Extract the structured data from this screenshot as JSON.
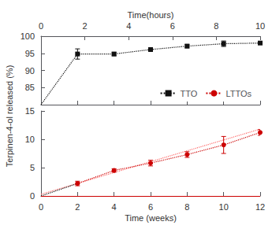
{
  "chart_data": {
    "type": "line",
    "ylabel": "Terpinen-4-ol released (%)",
    "xlabel": "Time (weeks)",
    "x2label": "Time(hours)",
    "xlim": [
      0,
      12
    ],
    "xticks": [
      0,
      2,
      4,
      6,
      8,
      10,
      12
    ],
    "x2lim": [
      0,
      10
    ],
    "x2ticks": [
      0,
      2,
      4,
      6,
      8,
      10
    ],
    "legend": "lower right",
    "grid": false,
    "panels": [
      {
        "ylim": [
          80,
          100
        ],
        "yticks": [
          85,
          90,
          95,
          100
        ],
        "tick_labels": "y",
        "series": [
          {
            "name": "TTO",
            "color": "#111111",
            "marker": "square",
            "line_style": "dotted",
            "x": [
              2,
              4,
              6,
              8,
              10,
              12
            ],
            "values": [
              94.8,
              94.8,
              96.1,
              97.1,
              97.8,
              98.0
            ],
            "errors": [
              1.5,
              0.5,
              0.4,
              0.5,
              0.8,
              0.4
            ]
          }
        ],
        "lines": [
          {
            "x": [
              0,
              2
            ],
            "values": [
              80,
              94.8
            ],
            "color": "#111111",
            "line_style": "dotted"
          }
        ]
      },
      {
        "ylim": [
          0,
          15
        ],
        "yticks": [
          0,
          5,
          10,
          15
        ],
        "series": [
          {
            "name": "LTTOs",
            "color": "#cc0000",
            "marker": "circle",
            "line_style": "dotted",
            "x": [
              2,
              4,
              6,
              8,
              10,
              12
            ],
            "values": [
              2.2,
              4.5,
              5.8,
              7.3,
              9.0,
              11.2
            ],
            "errors": [
              0.4,
              0.3,
              0.5,
              0.5,
              1.5,
              0.5
            ]
          }
        ],
        "lines": [
          {
            "x": [
              0,
              12
            ],
            "values": [
              0.3,
              11.8
            ],
            "color": "#ff6666",
            "line_style": "dotted"
          },
          {
            "x": [
              0,
              2
            ],
            "values": [
              0,
              2.2
            ],
            "color": "#111111",
            "line_style": "dotted"
          }
        ],
        "hlines": [
          {
            "y": 0,
            "color": "#cc0000"
          }
        ]
      }
    ]
  }
}
